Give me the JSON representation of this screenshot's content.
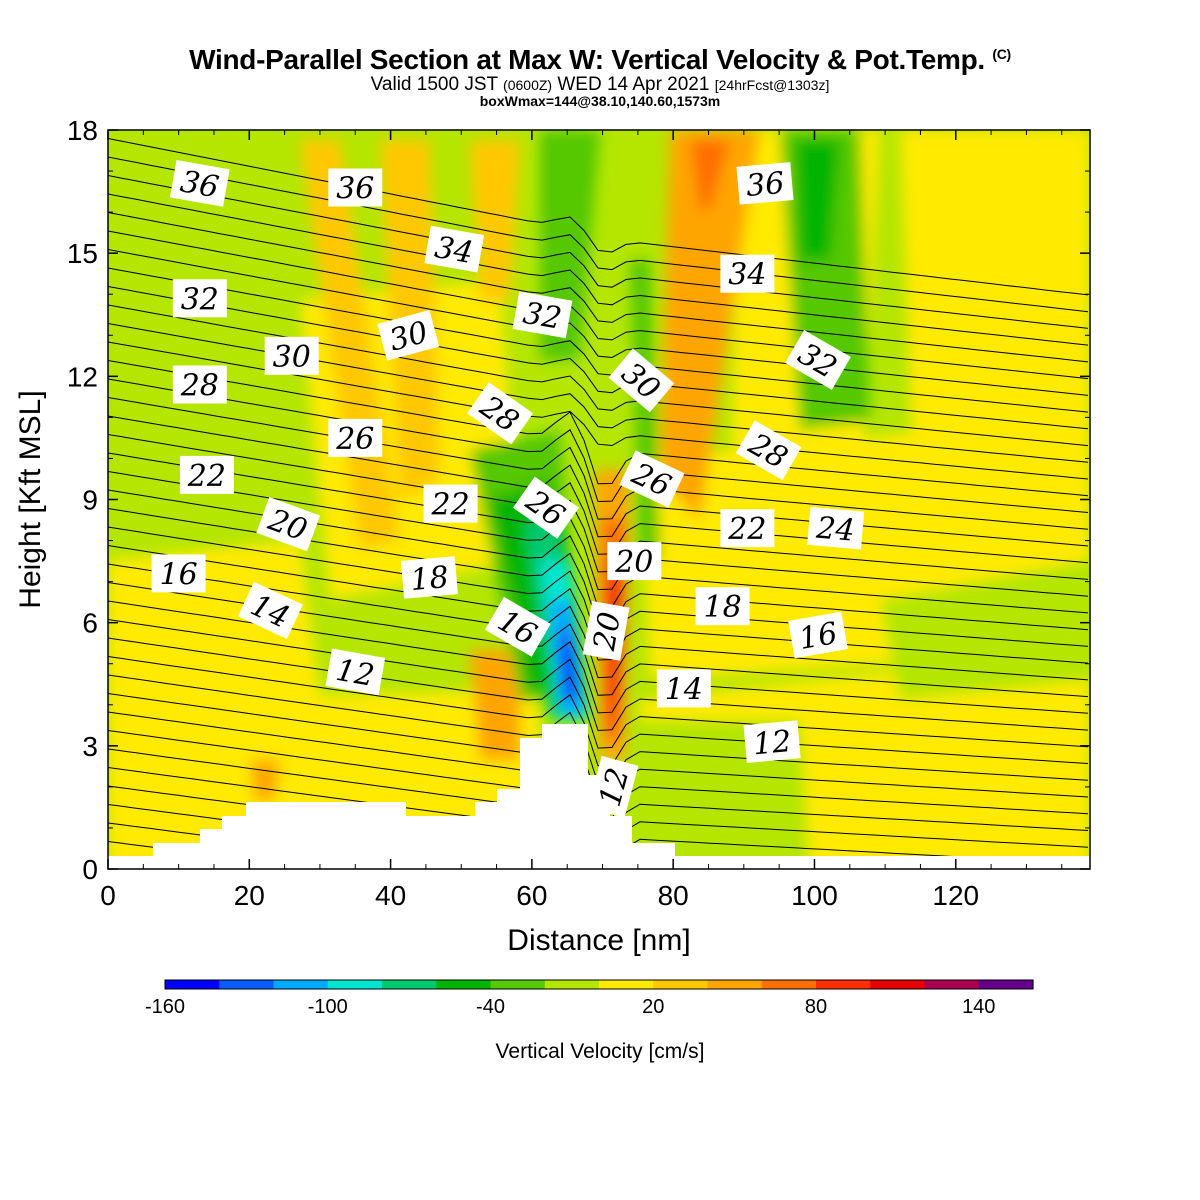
{
  "titles": {
    "main": "Wind-Parallel Section at Max W: Vertical Velocity & Pot.Temp.",
    "copyright": "(C)",
    "valid_prefix": "Valid 1500 JST",
    "utc": "(0600Z)",
    "valid_date": "WED 14 Apr 2021",
    "forecast": "[24hrFcst@1303z]",
    "boxinfo": "boxWmax=144@38.10,140.60,1573m"
  },
  "chart_data": {
    "type": "contour",
    "xlabel": "Distance [nm]",
    "ylabel": "Height [Kft MSL]",
    "xlim": [
      0,
      139
    ],
    "ylim": [
      0,
      18
    ],
    "x_ticks": [
      "0",
      "20",
      "40",
      "60",
      "80",
      "100",
      "120"
    ],
    "y_ticks": [
      "0",
      "3",
      "6",
      "9",
      "12",
      "15",
      "18"
    ],
    "colorbar": {
      "title": "Vertical Velocity [cm/s]",
      "tick_labels": [
        "-160",
        "-100",
        "-40",
        "20",
        "80",
        "140"
      ],
      "colors": [
        "#0000ff",
        "#0a5cff",
        "#00aaff",
        "#00e6d2",
        "#00c86e",
        "#00b400",
        "#55c800",
        "#b4e600",
        "#ffea00",
        "#ffc800",
        "#ffa500",
        "#ff6e00",
        "#ff2d00",
        "#e60000",
        "#aa0050",
        "#64008c"
      ]
    },
    "theta_labels": [
      {
        "text": "36",
        "x": 13,
        "y": 16.7,
        "rot": 10
      },
      {
        "text": "36",
        "x": 35,
        "y": 16.6,
        "rot": 0
      },
      {
        "text": "34",
        "x": 49,
        "y": 15.1,
        "rot": 10
      },
      {
        "text": "36",
        "x": 93,
        "y": 16.7,
        "rot": -5
      },
      {
        "text": "34",
        "x": 90.5,
        "y": 14.5,
        "rot": 0
      },
      {
        "text": "32",
        "x": 13,
        "y": 13.9,
        "rot": 0
      },
      {
        "text": "32",
        "x": 61.5,
        "y": 13.5,
        "rot": 10
      },
      {
        "text": "32",
        "x": 100.5,
        "y": 12.4,
        "rot": 30
      },
      {
        "text": "30",
        "x": 26,
        "y": 12.5,
        "rot": 0
      },
      {
        "text": "30",
        "x": 42.5,
        "y": 13.0,
        "rot": -15
      },
      {
        "text": "30",
        "x": 75.5,
        "y": 11.9,
        "rot": 40
      },
      {
        "text": "28",
        "x": 13,
        "y": 11.8,
        "rot": 0
      },
      {
        "text": "28",
        "x": 55.5,
        "y": 11.1,
        "rot": 35
      },
      {
        "text": "28",
        "x": 93.5,
        "y": 10.2,
        "rot": 30
      },
      {
        "text": "26",
        "x": 35,
        "y": 10.5,
        "rot": 0
      },
      {
        "text": "26",
        "x": 77,
        "y": 9.5,
        "rot": 25
      },
      {
        "text": "26",
        "x": 62,
        "y": 8.8,
        "rot": 35
      },
      {
        "text": "22",
        "x": 14,
        "y": 9.6,
        "rot": 0
      },
      {
        "text": "22",
        "x": 48.5,
        "y": 8.9,
        "rot": 0
      },
      {
        "text": "22",
        "x": 90.5,
        "y": 8.3,
        "rot": 0
      },
      {
        "text": "24",
        "x": 103,
        "y": 8.3,
        "rot": 5
      },
      {
        "text": "20",
        "x": 25.5,
        "y": 8.4,
        "rot": 20
      },
      {
        "text": "20",
        "x": 74.5,
        "y": 7.5,
        "rot": 0
      },
      {
        "text": "20",
        "x": 70.5,
        "y": 5.8,
        "rot": -80
      },
      {
        "text": "16",
        "x": 10,
        "y": 7.2,
        "rot": 0
      },
      {
        "text": "18",
        "x": 45.5,
        "y": 7.1,
        "rot": -5
      },
      {
        "text": "18",
        "x": 87,
        "y": 6.4,
        "rot": 0
      },
      {
        "text": "16",
        "x": 58,
        "y": 5.9,
        "rot": 30
      },
      {
        "text": "16",
        "x": 100.5,
        "y": 5.7,
        "rot": -10
      },
      {
        "text": "14",
        "x": 23,
        "y": 6.3,
        "rot": 25
      },
      {
        "text": "14",
        "x": 81.5,
        "y": 4.4,
        "rot": 0
      },
      {
        "text": "12",
        "x": 35,
        "y": 4.8,
        "rot": 10
      },
      {
        "text": "12",
        "x": 94,
        "y": 3.1,
        "rot": -5
      },
      {
        "text": "12",
        "x": 71.5,
        "y": 2.0,
        "rot": -75
      }
    ]
  }
}
